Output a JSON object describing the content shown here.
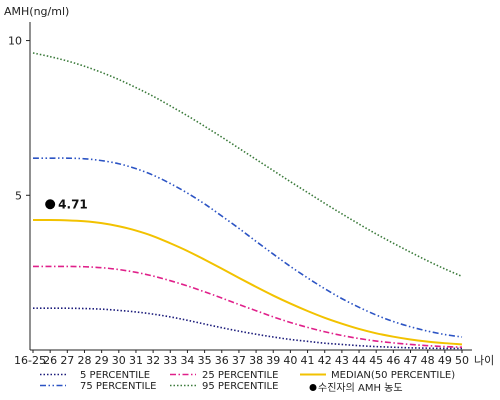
{
  "chart_data": {
    "type": "line",
    "title": "",
    "ylabel": "AMH(ng/ml)",
    "xlabel": "나이",
    "ylim": [
      0,
      10.6
    ],
    "y_ticks": [
      "5",
      "10"
    ],
    "y_tick_values": [
      5,
      10
    ],
    "categories": [
      "16-25",
      "26",
      "27",
      "28",
      "29",
      "30",
      "31",
      "32",
      "33",
      "34",
      "35",
      "36",
      "37",
      "38",
      "39",
      "40",
      "41",
      "42",
      "43",
      "44",
      "45",
      "46",
      "47",
      "48",
      "49",
      "50"
    ],
    "series": [
      {
        "name": "5 PERCENTILE",
        "color": "#1a1a7a",
        "dash": "dotted",
        "values": [
          1.35,
          1.35,
          1.35,
          1.34,
          1.32,
          1.28,
          1.23,
          1.16,
          1.07,
          0.96,
          0.84,
          0.72,
          0.61,
          0.51,
          0.42,
          0.34,
          0.28,
          0.22,
          0.18,
          0.14,
          0.11,
          0.09,
          0.07,
          0.06,
          0.05,
          0.05
        ]
      },
      {
        "name": "25 PERCENTILE",
        "color": "#e0208a",
        "dash": "dashdot",
        "values": [
          2.7,
          2.7,
          2.7,
          2.69,
          2.66,
          2.6,
          2.51,
          2.39,
          2.24,
          2.07,
          1.88,
          1.68,
          1.47,
          1.27,
          1.07,
          0.89,
          0.73,
          0.59,
          0.47,
          0.37,
          0.29,
          0.23,
          0.18,
          0.14,
          0.11,
          0.09
        ]
      },
      {
        "name": "MEDIAN(50 PERCENTILE)",
        "color": "#f2c200",
        "dash": "solid",
        "values": [
          4.2,
          4.2,
          4.19,
          4.16,
          4.1,
          4.0,
          3.86,
          3.68,
          3.45,
          3.2,
          2.92,
          2.63,
          2.33,
          2.04,
          1.76,
          1.5,
          1.26,
          1.04,
          0.85,
          0.68,
          0.54,
          0.43,
          0.34,
          0.27,
          0.22,
          0.18
        ]
      },
      {
        "name": "75 PERCENTILE",
        "color": "#2c54c4",
        "dash": "dashdotdot",
        "values": [
          6.2,
          6.2,
          6.2,
          6.18,
          6.12,
          6.02,
          5.86,
          5.65,
          5.38,
          5.07,
          4.72,
          4.33,
          3.93,
          3.51,
          3.1,
          2.7,
          2.33,
          1.98,
          1.66,
          1.38,
          1.13,
          0.92,
          0.75,
          0.61,
          0.5,
          0.42
        ]
      },
      {
        "name": "95 PERCENTILE",
        "color": "#3a7a3a",
        "dash": "dotted",
        "values": [
          9.6,
          9.48,
          9.34,
          9.17,
          8.97,
          8.74,
          8.48,
          8.2,
          7.89,
          7.57,
          7.23,
          6.88,
          6.52,
          6.16,
          5.8,
          5.44,
          5.09,
          4.74,
          4.4,
          4.07,
          3.75,
          3.45,
          3.16,
          2.88,
          2.62,
          2.38
        ]
      }
    ],
    "patient": {
      "name": "수진자의 AMH 농도",
      "x": "26",
      "value": 4.71,
      "label": "4.71",
      "color": "#000000"
    },
    "legend_placement": "bottom",
    "grid": false
  }
}
